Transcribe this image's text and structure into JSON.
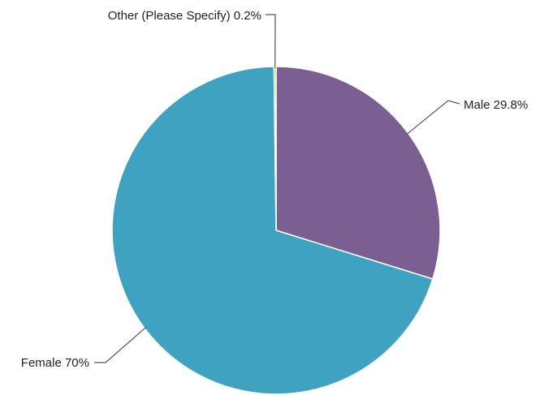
{
  "chart_data": {
    "type": "pie",
    "slices": [
      {
        "label": "Male",
        "value": 29.8,
        "display": "Male 29.8%",
        "color": "#7B5F92"
      },
      {
        "label": "Female",
        "value": 70,
        "display": "Female 70%",
        "color": "#3EA2C0"
      },
      {
        "label": "Other (Please Specify)",
        "value": 0.2,
        "display": "Other (Please Specify) 0.2%",
        "color": "#B3C74E"
      }
    ],
    "start_angle_deg": 0,
    "direction": "clockwise",
    "legend": "none",
    "labels": "outside-with-leader-lines"
  }
}
